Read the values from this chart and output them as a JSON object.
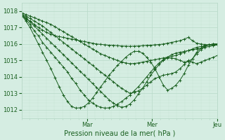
{
  "xlabel": "Pression niveau de la mer( hPa )",
  "ylim": [
    1011.5,
    1018.5
  ],
  "day_labels": [
    "Mar",
    "Mer",
    "Jeu"
  ],
  "yticks": [
    1012,
    1013,
    1014,
    1015,
    1016,
    1017,
    1018
  ],
  "bg_color": "#d5ede2",
  "grid_major_color": "#b8d9c8",
  "grid_minor_color": "#c8e4d4",
  "line_color": "#1a6020",
  "series": [
    [
      1017.7,
      1017.55,
      1017.4,
      1017.2,
      1017.0,
      1016.85,
      1016.7,
      1016.6,
      1016.5,
      1016.45,
      1016.4,
      1016.35,
      1016.3,
      1016.25,
      1016.2,
      1016.15,
      1016.1,
      1016.05,
      1016.0,
      1015.98,
      1015.95,
      1015.93,
      1015.92,
      1015.9,
      1015.88,
      1015.87,
      1015.86,
      1015.87,
      1015.88,
      1015.9,
      1015.92,
      1015.93,
      1015.95,
      1015.97,
      1016.0,
      1016.05,
      1016.1,
      1016.15,
      1016.2,
      1016.3,
      1016.4,
      1016.2,
      1016.05,
      1016.0,
      1015.97,
      1015.95,
      1015.93,
      1015.95
    ],
    [
      1017.8,
      1017.5,
      1017.2,
      1016.8,
      1016.5,
      1016.1,
      1015.8,
      1015.5,
      1015.2,
      1014.9,
      1014.6,
      1014.3,
      1013.9,
      1013.6,
      1013.2,
      1012.9,
      1012.6,
      1012.4,
      1012.25,
      1012.15,
      1012.1,
      1012.12,
      1012.2,
      1012.35,
      1012.5,
      1012.7,
      1012.9,
      1013.15,
      1013.4,
      1013.7,
      1014.0,
      1014.3,
      1014.6,
      1014.85,
      1015.05,
      1015.2,
      1015.35,
      1015.45,
      1015.5,
      1015.55,
      1015.6,
      1015.65,
      1015.7,
      1015.75,
      1015.8,
      1015.85,
      1015.9,
      1015.95
    ],
    [
      1017.75,
      1017.4,
      1017.0,
      1016.5,
      1016.0,
      1015.5,
      1015.0,
      1014.5,
      1013.95,
      1013.4,
      1012.9,
      1012.5,
      1012.2,
      1012.1,
      1012.12,
      1012.2,
      1012.4,
      1012.7,
      1013.05,
      1013.4,
      1013.75,
      1014.1,
      1014.4,
      1014.7,
      1014.95,
      1015.2,
      1015.4,
      1015.55,
      1015.55,
      1015.45,
      1015.2,
      1014.9,
      1014.5,
      1014.0,
      1013.5,
      1013.2,
      1013.3,
      1013.5,
      1013.8,
      1014.2,
      1014.7,
      1015.1,
      1015.5,
      1015.75,
      1015.9,
      1015.95,
      1016.0,
      1015.95
    ],
    [
      1017.8,
      1017.6,
      1017.35,
      1017.1,
      1016.85,
      1016.6,
      1016.35,
      1016.1,
      1015.85,
      1015.6,
      1015.35,
      1015.1,
      1014.85,
      1014.6,
      1014.35,
      1014.1,
      1013.85,
      1013.6,
      1013.35,
      1013.1,
      1012.85,
      1012.6,
      1012.4,
      1012.25,
      1012.15,
      1012.2,
      1012.35,
      1012.6,
      1012.95,
      1013.3,
      1013.7,
      1014.1,
      1014.45,
      1014.75,
      1015.0,
      1015.15,
      1015.15,
      1015.1,
      1015.0,
      1014.9,
      1014.95,
      1015.1,
      1015.4,
      1015.65,
      1015.85,
      1015.95,
      1016.0,
      1016.0
    ],
    [
      1017.85,
      1017.7,
      1017.55,
      1017.4,
      1017.25,
      1017.1,
      1016.9,
      1016.7,
      1016.5,
      1016.3,
      1016.1,
      1015.9,
      1015.7,
      1015.5,
      1015.3,
      1015.1,
      1014.9,
      1014.7,
      1014.5,
      1014.3,
      1014.1,
      1013.9,
      1013.7,
      1013.5,
      1013.3,
      1013.15,
      1013.0,
      1013.05,
      1013.15,
      1013.3,
      1013.5,
      1013.7,
      1013.9,
      1014.0,
      1014.1,
      1014.15,
      1014.2,
      1014.3,
      1014.5,
      1014.75,
      1015.0,
      1014.9,
      1014.8,
      1014.9,
      1015.0,
      1015.1,
      1015.2,
      1015.3
    ],
    [
      1017.9,
      1017.8,
      1017.7,
      1017.6,
      1017.5,
      1017.4,
      1017.3,
      1017.2,
      1017.05,
      1016.9,
      1016.75,
      1016.6,
      1016.45,
      1016.3,
      1016.15,
      1016.0,
      1015.85,
      1015.7,
      1015.55,
      1015.4,
      1015.3,
      1015.2,
      1015.1,
      1015.0,
      1014.9,
      1014.85,
      1014.8,
      1014.82,
      1014.85,
      1014.9,
      1014.95,
      1015.0,
      1015.05,
      1015.1,
      1015.15,
      1015.2,
      1015.25,
      1015.3,
      1015.4,
      1015.5,
      1015.6,
      1015.7,
      1015.8,
      1015.85,
      1015.9,
      1015.95,
      1016.0,
      1016.0
    ]
  ]
}
